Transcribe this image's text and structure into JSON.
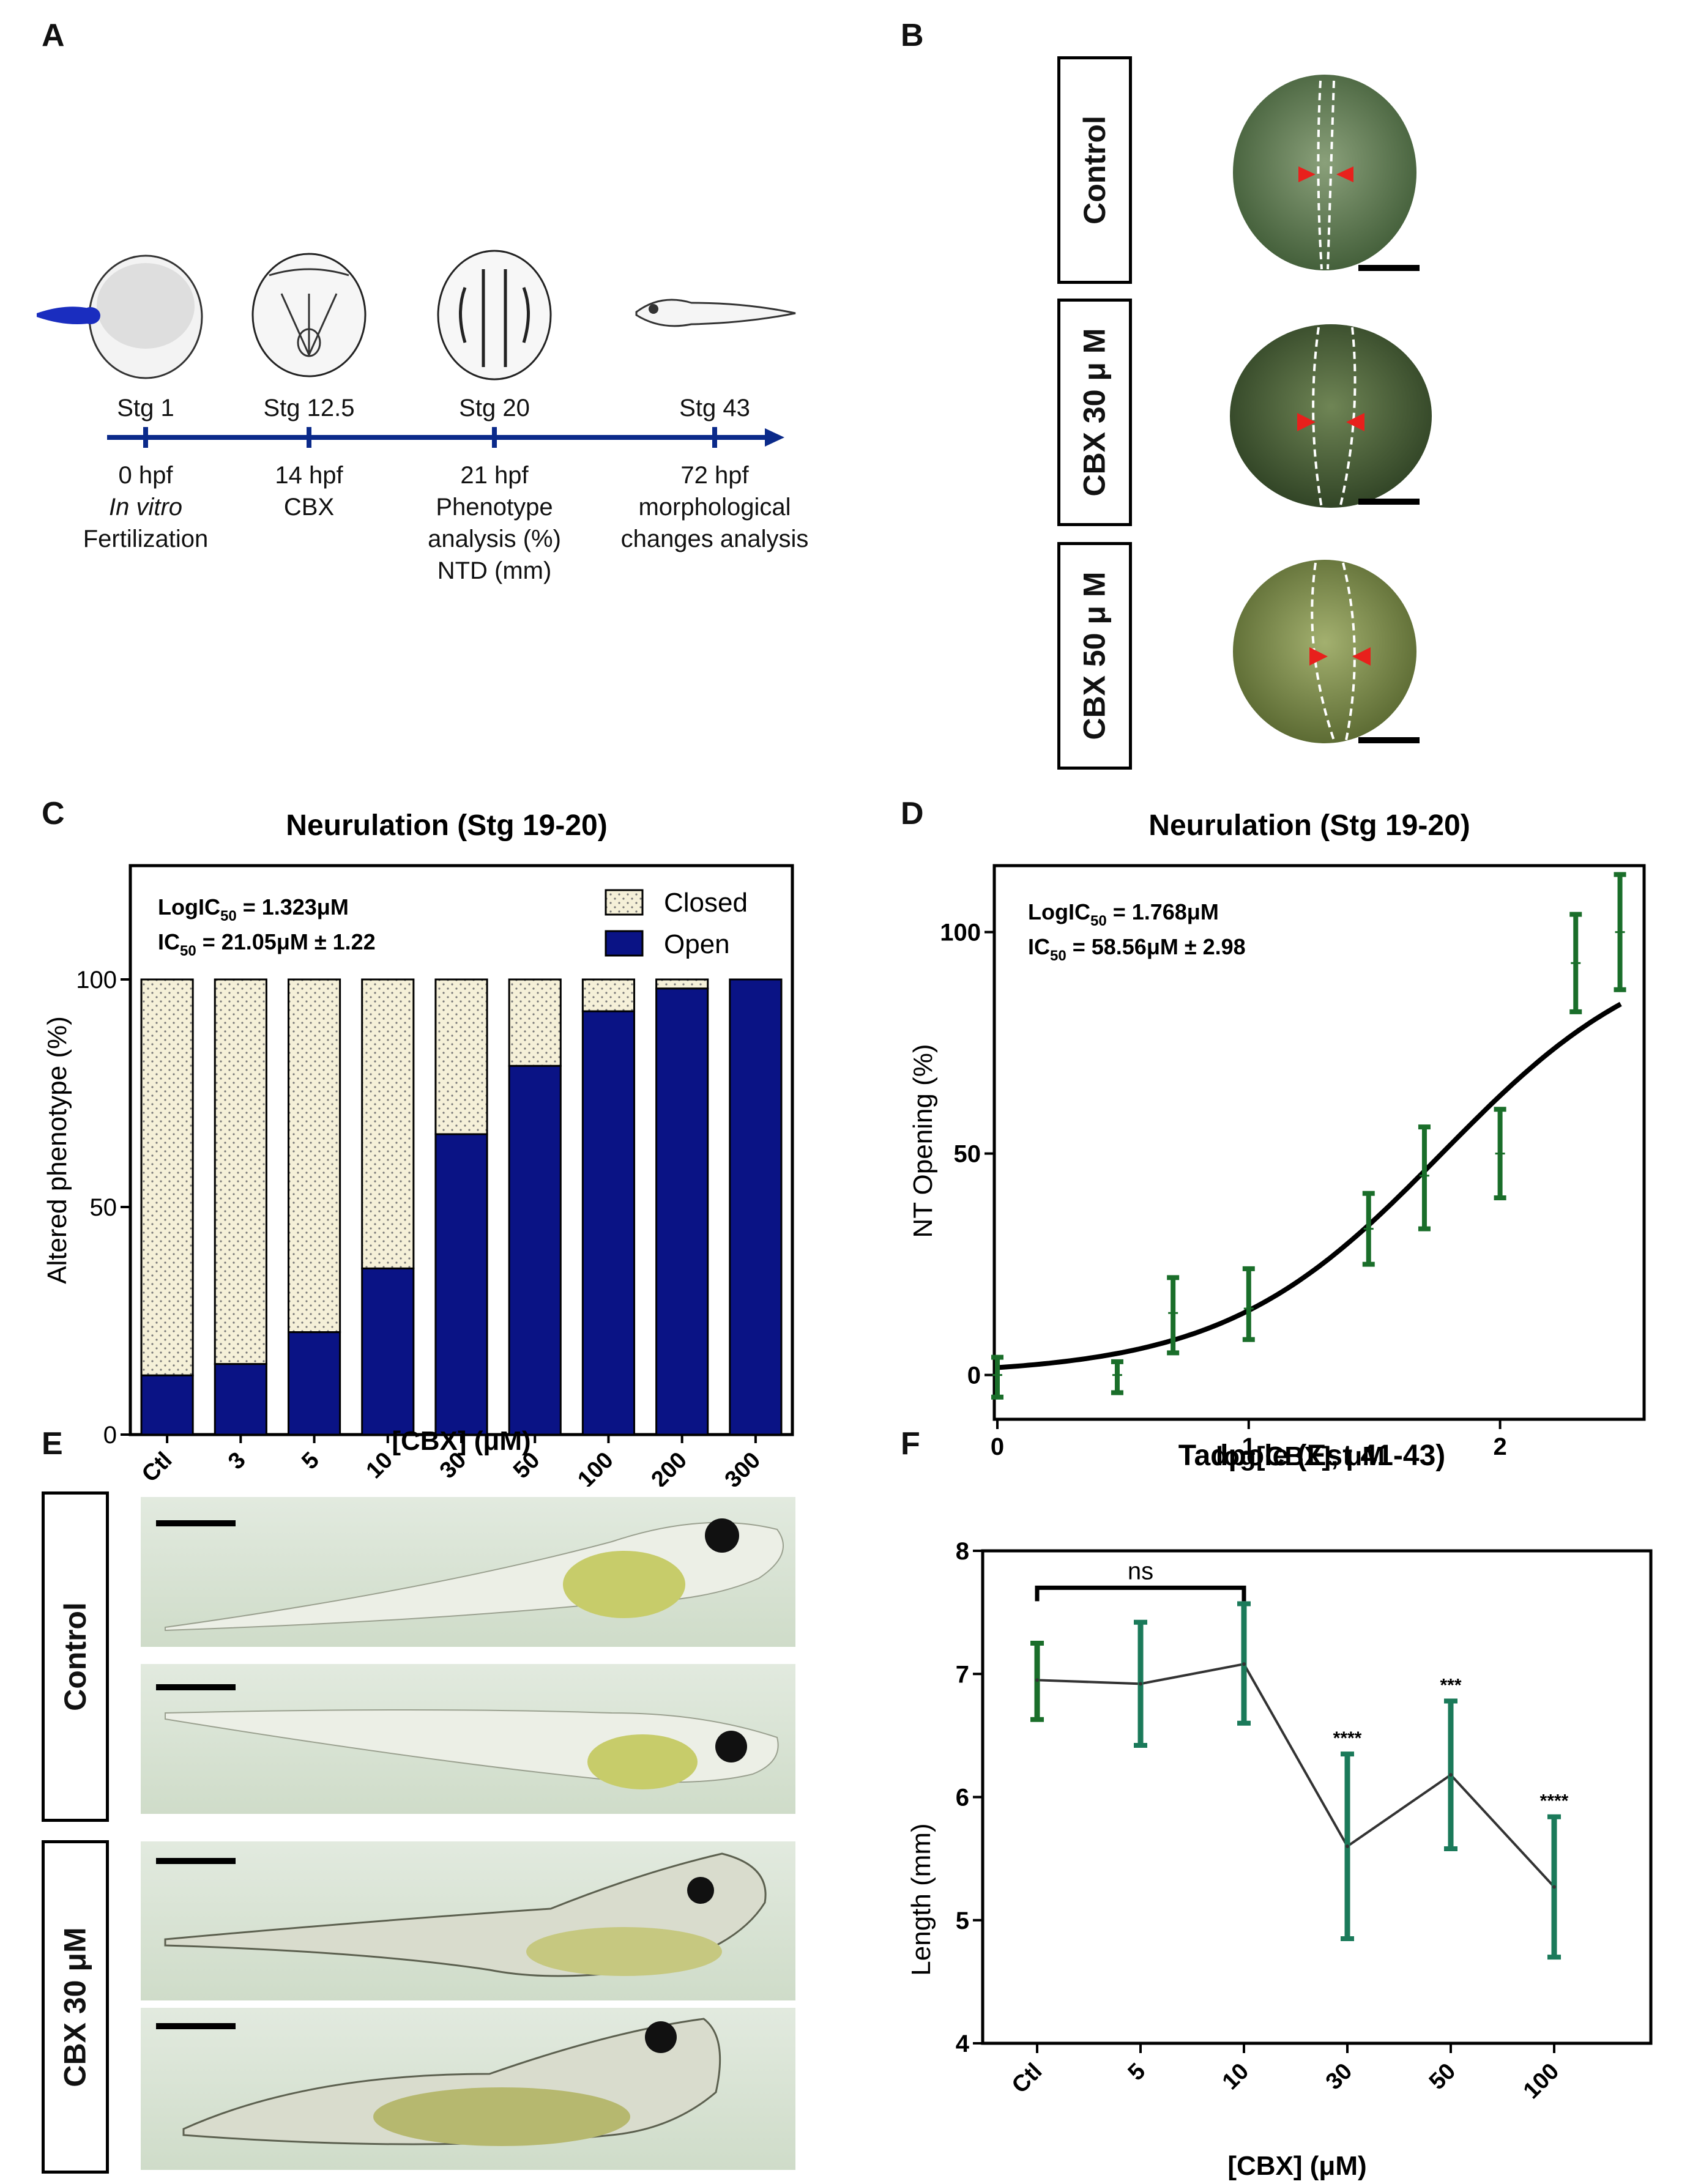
{
  "panels": {
    "a": "A",
    "b": "B",
    "c": "C",
    "d": "D",
    "e": "E",
    "f": "F"
  },
  "timeline": {
    "stages": [
      {
        "stage": "Stg 1",
        "lines": [
          "0 hpf",
          "In vitro",
          "Fertilization"
        ]
      },
      {
        "stage": "Stg 12.5",
        "lines": [
          "14 hpf",
          "CBX"
        ]
      },
      {
        "stage": "Stg 20",
        "lines": [
          "21 hpf",
          "Phenotype",
          "analysis (%)",
          "NTD (mm)"
        ]
      },
      {
        "stage": "Stg 43",
        "lines": [
          "72 hpf",
          "morphological",
          "changes analysis"
        ]
      }
    ],
    "axis_color": "#0b2a8a"
  },
  "panel_b": {
    "rows": [
      "Control",
      "CBX 30 μ M",
      "CBX 50 μ M"
    ]
  },
  "panel_e": {
    "rows": [
      "Control",
      "CBX 30 μM"
    ]
  },
  "colors": {
    "open": "#0a1385",
    "closed": "#f5f0d8",
    "dose_green": "#1a6e2a",
    "length_teal": "#1b7a5a",
    "arrow_red": "#e8201c"
  },
  "chart_data": [
    {
      "type": "bar",
      "panel": "C",
      "title": "Neurulation (Stg 19-20)",
      "xlabel": "[CBX] (μM)",
      "ylabel": "Altered phenotype (%)",
      "ylim": [
        0,
        125
      ],
      "yticks": [
        "0",
        "50",
        "100"
      ],
      "categories": [
        "Ctl",
        "3",
        "5",
        "10",
        "30",
        "50",
        "100",
        "200",
        "300"
      ],
      "series": [
        {
          "name": "Open",
          "values": [
            13,
            15.5,
            22.5,
            36.5,
            66,
            81,
            93,
            98,
            100
          ]
        },
        {
          "name": "Closed",
          "values": [
            87,
            84.5,
            77.5,
            63.5,
            34,
            19,
            7,
            2,
            0
          ]
        }
      ],
      "annotations": [
        "LogIC",
        "50",
        " = 1.323μM",
        "IC",
        "50",
        " = 21.05μM ± 1.22"
      ],
      "legend": "top-right"
    },
    {
      "type": "scatter",
      "panel": "D",
      "title": "Neurulation (Stg 19-20)",
      "xlabel": "log[CBX], μM",
      "ylabel": "NT Opening (%)",
      "xlim": [
        0,
        2.5
      ],
      "ylim": [
        -10,
        115
      ],
      "xticks": [
        "0",
        "1",
        "2"
      ],
      "yticks": [
        "0",
        "50",
        "100"
      ],
      "points": [
        {
          "x": 0,
          "y": 0,
          "low": -5,
          "high": 4
        },
        {
          "x": 0.477,
          "y": 0,
          "low": -4,
          "high": 3
        },
        {
          "x": 0.699,
          "y": 14,
          "low": 5,
          "high": 22
        },
        {
          "x": 1.0,
          "y": 15,
          "low": 8,
          "high": 24
        },
        {
          "x": 1.477,
          "y": 33,
          "low": 25,
          "high": 41
        },
        {
          "x": 1.699,
          "y": 45,
          "low": 33,
          "high": 56
        },
        {
          "x": 2.0,
          "y": 50,
          "low": 40,
          "high": 60
        },
        {
          "x": 2.301,
          "y": 93,
          "low": 82,
          "high": 104
        },
        {
          "x": 2.477,
          "y": 100,
          "low": 87,
          "high": 113
        }
      ],
      "fit": {
        "logIC50": 1.768,
        "hill": 1.0,
        "bottom": 0,
        "top": 100
      },
      "annotations": [
        "LogIC",
        "50",
        " = 1.768μM",
        "IC",
        "50",
        " = 58.56μM ± 2.98"
      ]
    },
    {
      "type": "line",
      "panel": "F",
      "title": "Tadpole (Est 41-43)",
      "xlabel": "[CBX] (μM)",
      "ylabel": "Length (mm)",
      "ylim": [
        4,
        8
      ],
      "yticks": [
        "4",
        "5",
        "6",
        "7",
        "8"
      ],
      "categories": [
        "Ctl",
        "5",
        "10",
        "30",
        "50",
        "100"
      ],
      "values": [
        6.95,
        6.92,
        7.08,
        5.6,
        6.18,
        5.27
      ],
      "err_low": [
        6.63,
        6.42,
        6.6,
        4.85,
        5.58,
        4.7
      ],
      "err_high": [
        7.25,
        7.42,
        7.57,
        6.35,
        6.78,
        5.84
      ],
      "significance": [
        "",
        "",
        "",
        "****",
        "***",
        "****"
      ],
      "bracket": "ns"
    }
  ]
}
